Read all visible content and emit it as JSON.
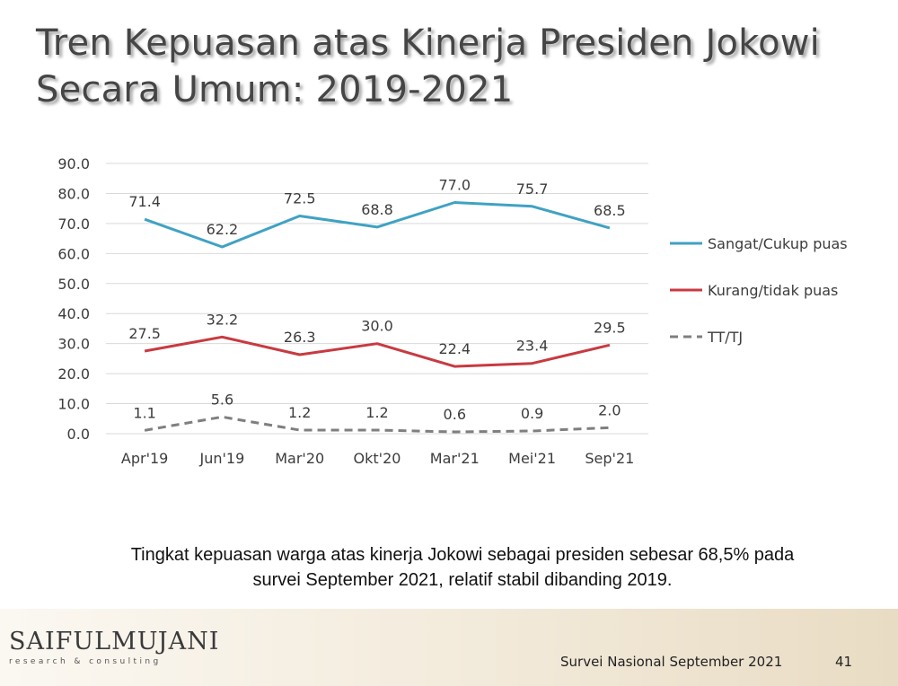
{
  "title": {
    "line1": "Tren Kepuasan atas Kinerja Presiden Jokowi",
    "line2": "Secara Umum: 2019-2021"
  },
  "chart_data": {
    "type": "line",
    "categories": [
      "Apr'19",
      "Jun'19",
      "Mar'20",
      "Okt'20",
      "Mar'21",
      "Mei'21",
      "Sep'21"
    ],
    "ylim": [
      0,
      90
    ],
    "yticks": [
      "0.0",
      "10.0",
      "20.0",
      "30.0",
      "40.0",
      "50.0",
      "60.0",
      "70.0",
      "80.0",
      "90.0"
    ],
    "grid": true,
    "legend_position": "right",
    "series": [
      {
        "name": "Sangat/Cukup puas",
        "values": [
          71.4,
          62.2,
          72.5,
          68.8,
          77.0,
          75.7,
          68.5
        ],
        "labels": [
          "71.4",
          "62.2",
          "72.5",
          "68.8",
          "77.0",
          "75.7",
          "68.5"
        ],
        "color": "#3fa2c3",
        "style": "solid"
      },
      {
        "name": "Kurang/tidak puas",
        "values": [
          27.5,
          32.2,
          26.3,
          30.0,
          22.4,
          23.4,
          29.5
        ],
        "labels": [
          "27.5",
          "32.2",
          "26.3",
          "30.0",
          "22.4",
          "23.4",
          "29.5"
        ],
        "color": "#c83a40",
        "style": "solid"
      },
      {
        "name": "TT/TJ",
        "values": [
          1.1,
          5.6,
          1.2,
          1.2,
          0.6,
          0.9,
          2.0
        ],
        "labels": [
          "1.1",
          "5.6",
          "1.2",
          "1.2",
          "0.6",
          "0.9",
          "2.0"
        ],
        "color": "#7f7f7f",
        "style": "dashed"
      }
    ]
  },
  "caption": {
    "line1": "Tingkat kepuasan warga atas kinerja Jokowi sebagai presiden sebesar 68,5% pada",
    "line2": "survei September 2021, relatif stabil dibanding 2019."
  },
  "footer": {
    "logo_main": "SAIFULMUJANI",
    "logo_sub": "research & consulting",
    "survey": "Survei Nasional September 2021",
    "page": "41"
  }
}
